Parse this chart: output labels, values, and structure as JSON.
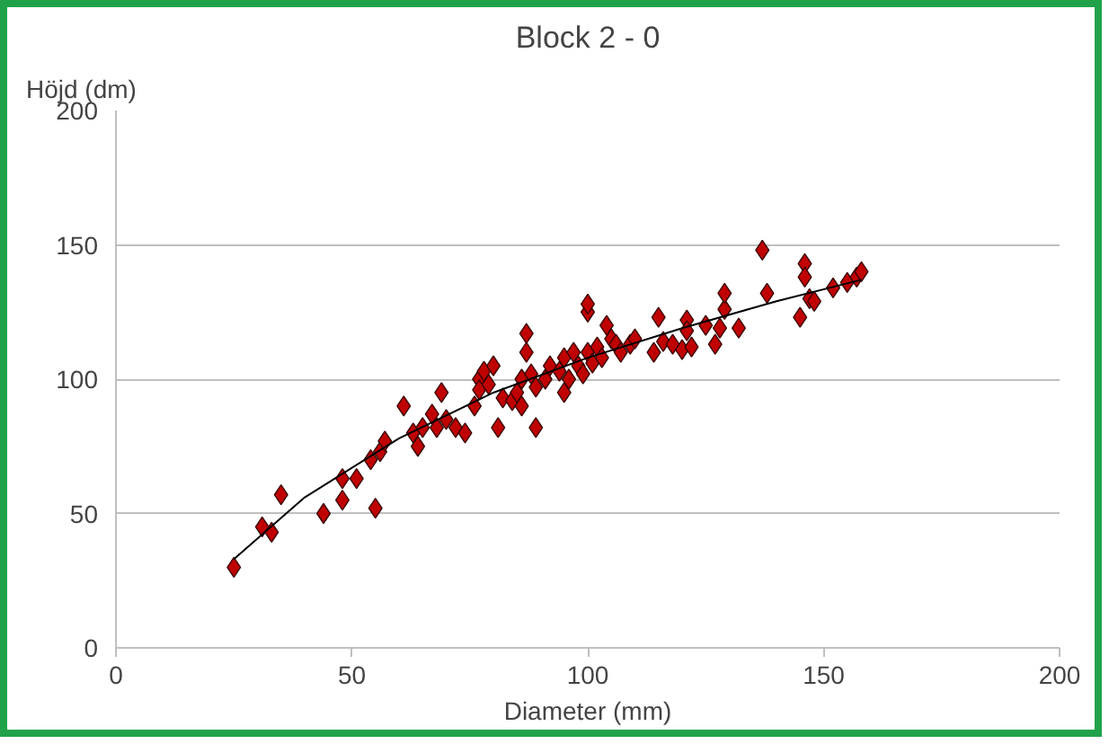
{
  "chart_data": {
    "type": "scatter",
    "title": "Block 2 - 0",
    "xlabel": "Diameter (mm)",
    "ylabel": "Höjd (dm)",
    "xlim": [
      0,
      200
    ],
    "ylim": [
      0,
      200
    ],
    "xticks": [
      0,
      50,
      100,
      150,
      200
    ],
    "yticks": [
      0,
      50,
      100,
      150,
      200
    ],
    "grid": "y",
    "marker": "diamond",
    "series": [
      {
        "color": "#c00000",
        "x": [
          25,
          31,
          33,
          35,
          44,
          48,
          48,
          51,
          54,
          55,
          56,
          57,
          61,
          63,
          64,
          65,
          67,
          68,
          69,
          70,
          72,
          74,
          76,
          77,
          77,
          78,
          79,
          80,
          81,
          82,
          84,
          85,
          86,
          86,
          87,
          87,
          88,
          89,
          89,
          91,
          92,
          94,
          95,
          95,
          96,
          97,
          98,
          99,
          100,
          100,
          100,
          101,
          102,
          103,
          104,
          105,
          106,
          107,
          109,
          110,
          114,
          115,
          116,
          118,
          120,
          121,
          121,
          122,
          125,
          127,
          128,
          129,
          129,
          132,
          137,
          138,
          145,
          146,
          146,
          147,
          148,
          152,
          155,
          157,
          158
        ],
        "values": [
          30,
          45,
          43,
          57,
          50,
          63,
          55,
          63,
          70,
          52,
          73,
          77,
          90,
          80,
          75,
          82,
          87,
          82,
          95,
          85,
          82,
          80,
          90,
          100,
          96,
          103,
          98,
          105,
          82,
          93,
          92,
          95,
          90,
          100,
          110,
          117,
          102,
          97,
          82,
          100,
          105,
          103,
          108,
          95,
          100,
          110,
          105,
          102,
          125,
          128,
          110,
          106,
          112,
          108,
          120,
          115,
          113,
          110,
          113,
          115,
          110,
          123,
          114,
          113,
          111,
          122,
          118,
          112,
          120,
          113,
          119,
          126,
          132,
          119,
          148,
          132,
          123,
          143,
          138,
          130,
          129,
          134,
          136,
          138,
          140
        ]
      },
      {
        "type": "line",
        "color": "#000000",
        "marker": "none",
        "x": [
          25,
          40,
          60,
          80,
          100,
          120,
          140,
          158
        ],
        "values": [
          33,
          56,
          78,
          95,
          108,
          119,
          129,
          137
        ]
      }
    ]
  }
}
